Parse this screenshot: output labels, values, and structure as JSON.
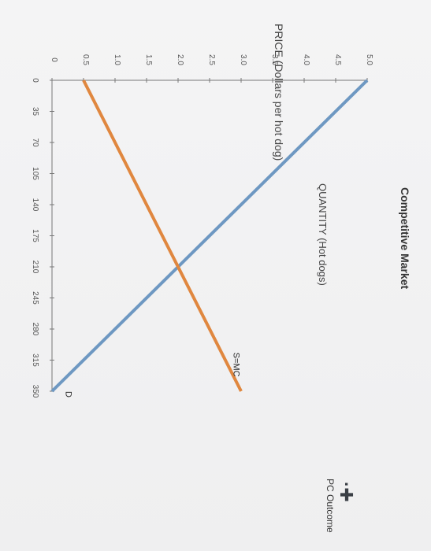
{
  "chart_data": {
    "type": "line",
    "title": "Competitive Market",
    "xlabel": "QUANTITY (Hot dogs)",
    "ylabel": "PRICE (Dollars per hot dog)",
    "xlim": [
      0,
      350
    ],
    "ylim": [
      0,
      5.0
    ],
    "x_ticks": [
      "0",
      "35",
      "70",
      "105",
      "140",
      "175",
      "210",
      "245",
      "280",
      "315",
      "350"
    ],
    "y_ticks": [
      "0",
      "0.5",
      "1.0",
      "1.5",
      "2.0",
      "2.5",
      "3.0",
      "3.5",
      "4.0",
      "4.5",
      "5.0"
    ],
    "orientation": "rotated 90 degrees clockwise",
    "grid": false,
    "series": [
      {
        "name": "D",
        "color": "#6e98c2",
        "points": [
          [
            0,
            5.0
          ],
          [
            350,
            0
          ]
        ]
      },
      {
        "name": "S=MC",
        "color": "#e0873f",
        "points": [
          [
            0,
            0.5
          ],
          [
            350,
            3.0
          ]
        ]
      }
    ]
  },
  "legend": {
    "marker_icon": "plus-icon",
    "marker_glyph": "·✚",
    "label": "PC Outcome"
  }
}
